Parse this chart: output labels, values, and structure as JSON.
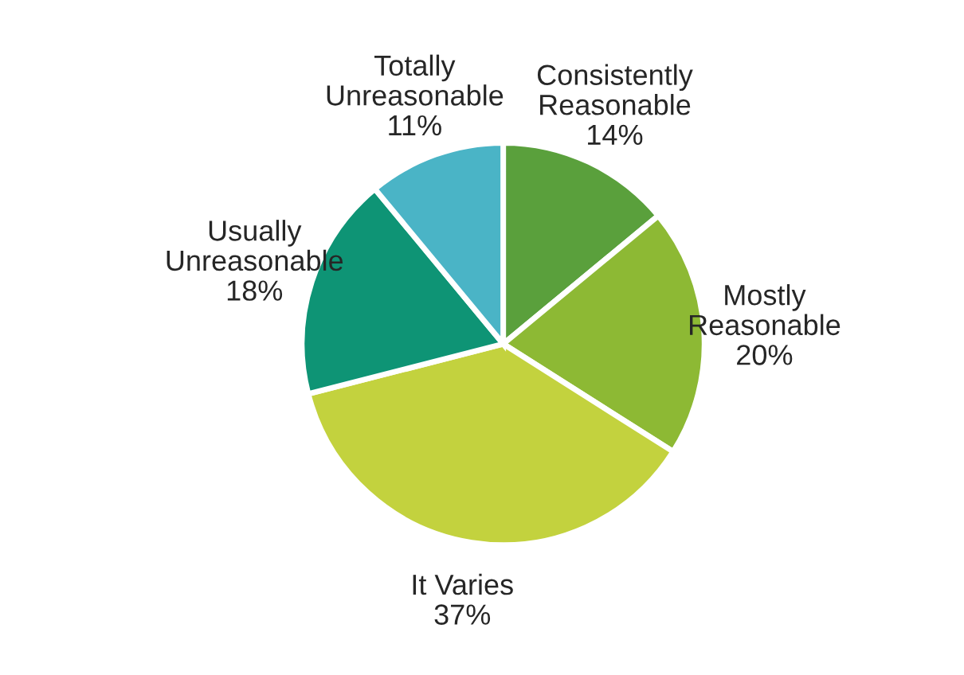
{
  "chart_data": {
    "type": "pie",
    "categories": [
      "Consistently\nReasonable",
      "Mostly\nReasonable",
      "It Varies",
      "Usually\nUnreasonable",
      "Totally\nUnreasonable"
    ],
    "values": [
      14,
      20,
      37,
      18,
      11
    ],
    "value_labels": [
      "14%",
      "20%",
      "37%",
      "18%",
      "11%"
    ],
    "colors": [
      "#5aa03c",
      "#8db934",
      "#c3d23e",
      "#0e9475",
      "#4ab4c6"
    ]
  }
}
